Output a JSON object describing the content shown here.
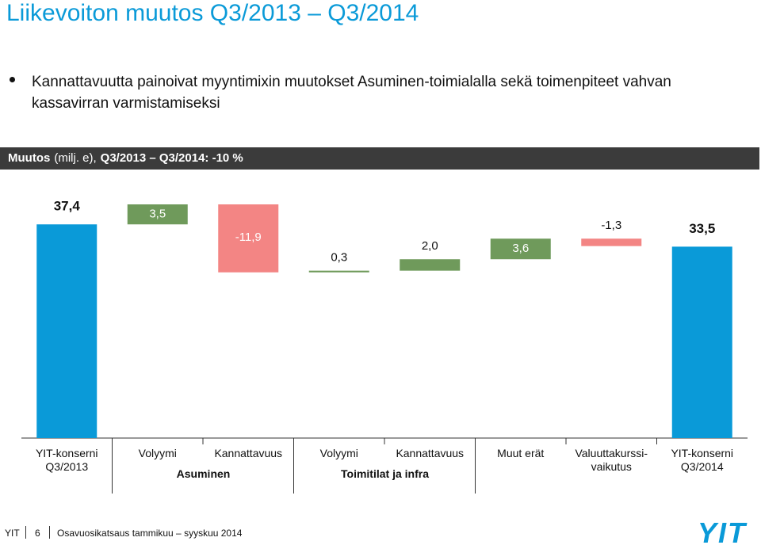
{
  "header": {
    "title": "Liikevoiton muutos Q3/2013 – Q3/2014",
    "bullet": "Kannattavuutta painoivat myyntimixin muutokset Asuminen-toimialalla sekä toimenpiteet vahvan kassavirran varmistamiseksi"
  },
  "chart_data": {
    "type": "waterfall",
    "title_parts": [
      "Muutos",
      "(milj. e),",
      "Q3/2013 – Q3/2014: -10 %"
    ],
    "categories": [
      "YIT-konserni Q3/2013",
      "Volyymi",
      "Kannattavuus",
      "Volyymi",
      "Kannattavuus",
      "Muut erät",
      "Valuuttakurssi-vaikutus",
      "YIT-konserni Q3/2014"
    ],
    "group_labels": [
      "Asuminen",
      "Toimitilat ja infra"
    ],
    "values": [
      37.4,
      3.5,
      -11.9,
      0.3,
      2.0,
      3.6,
      -1.3,
      33.5
    ],
    "value_labels": [
      "37,4",
      "3,5",
      "-11,9",
      "0,3",
      "2,0",
      "3,6",
      "-1,3",
      "33,5"
    ],
    "colors": {
      "total": "#0a9ad8",
      "increase": "#6f9a5b",
      "decrease": "#f38584"
    }
  },
  "footer": {
    "company": "YIT",
    "page": "6",
    "report": "Osavuosikatsaus tammikuu – syyskuu 2014",
    "logo": "YIT"
  }
}
